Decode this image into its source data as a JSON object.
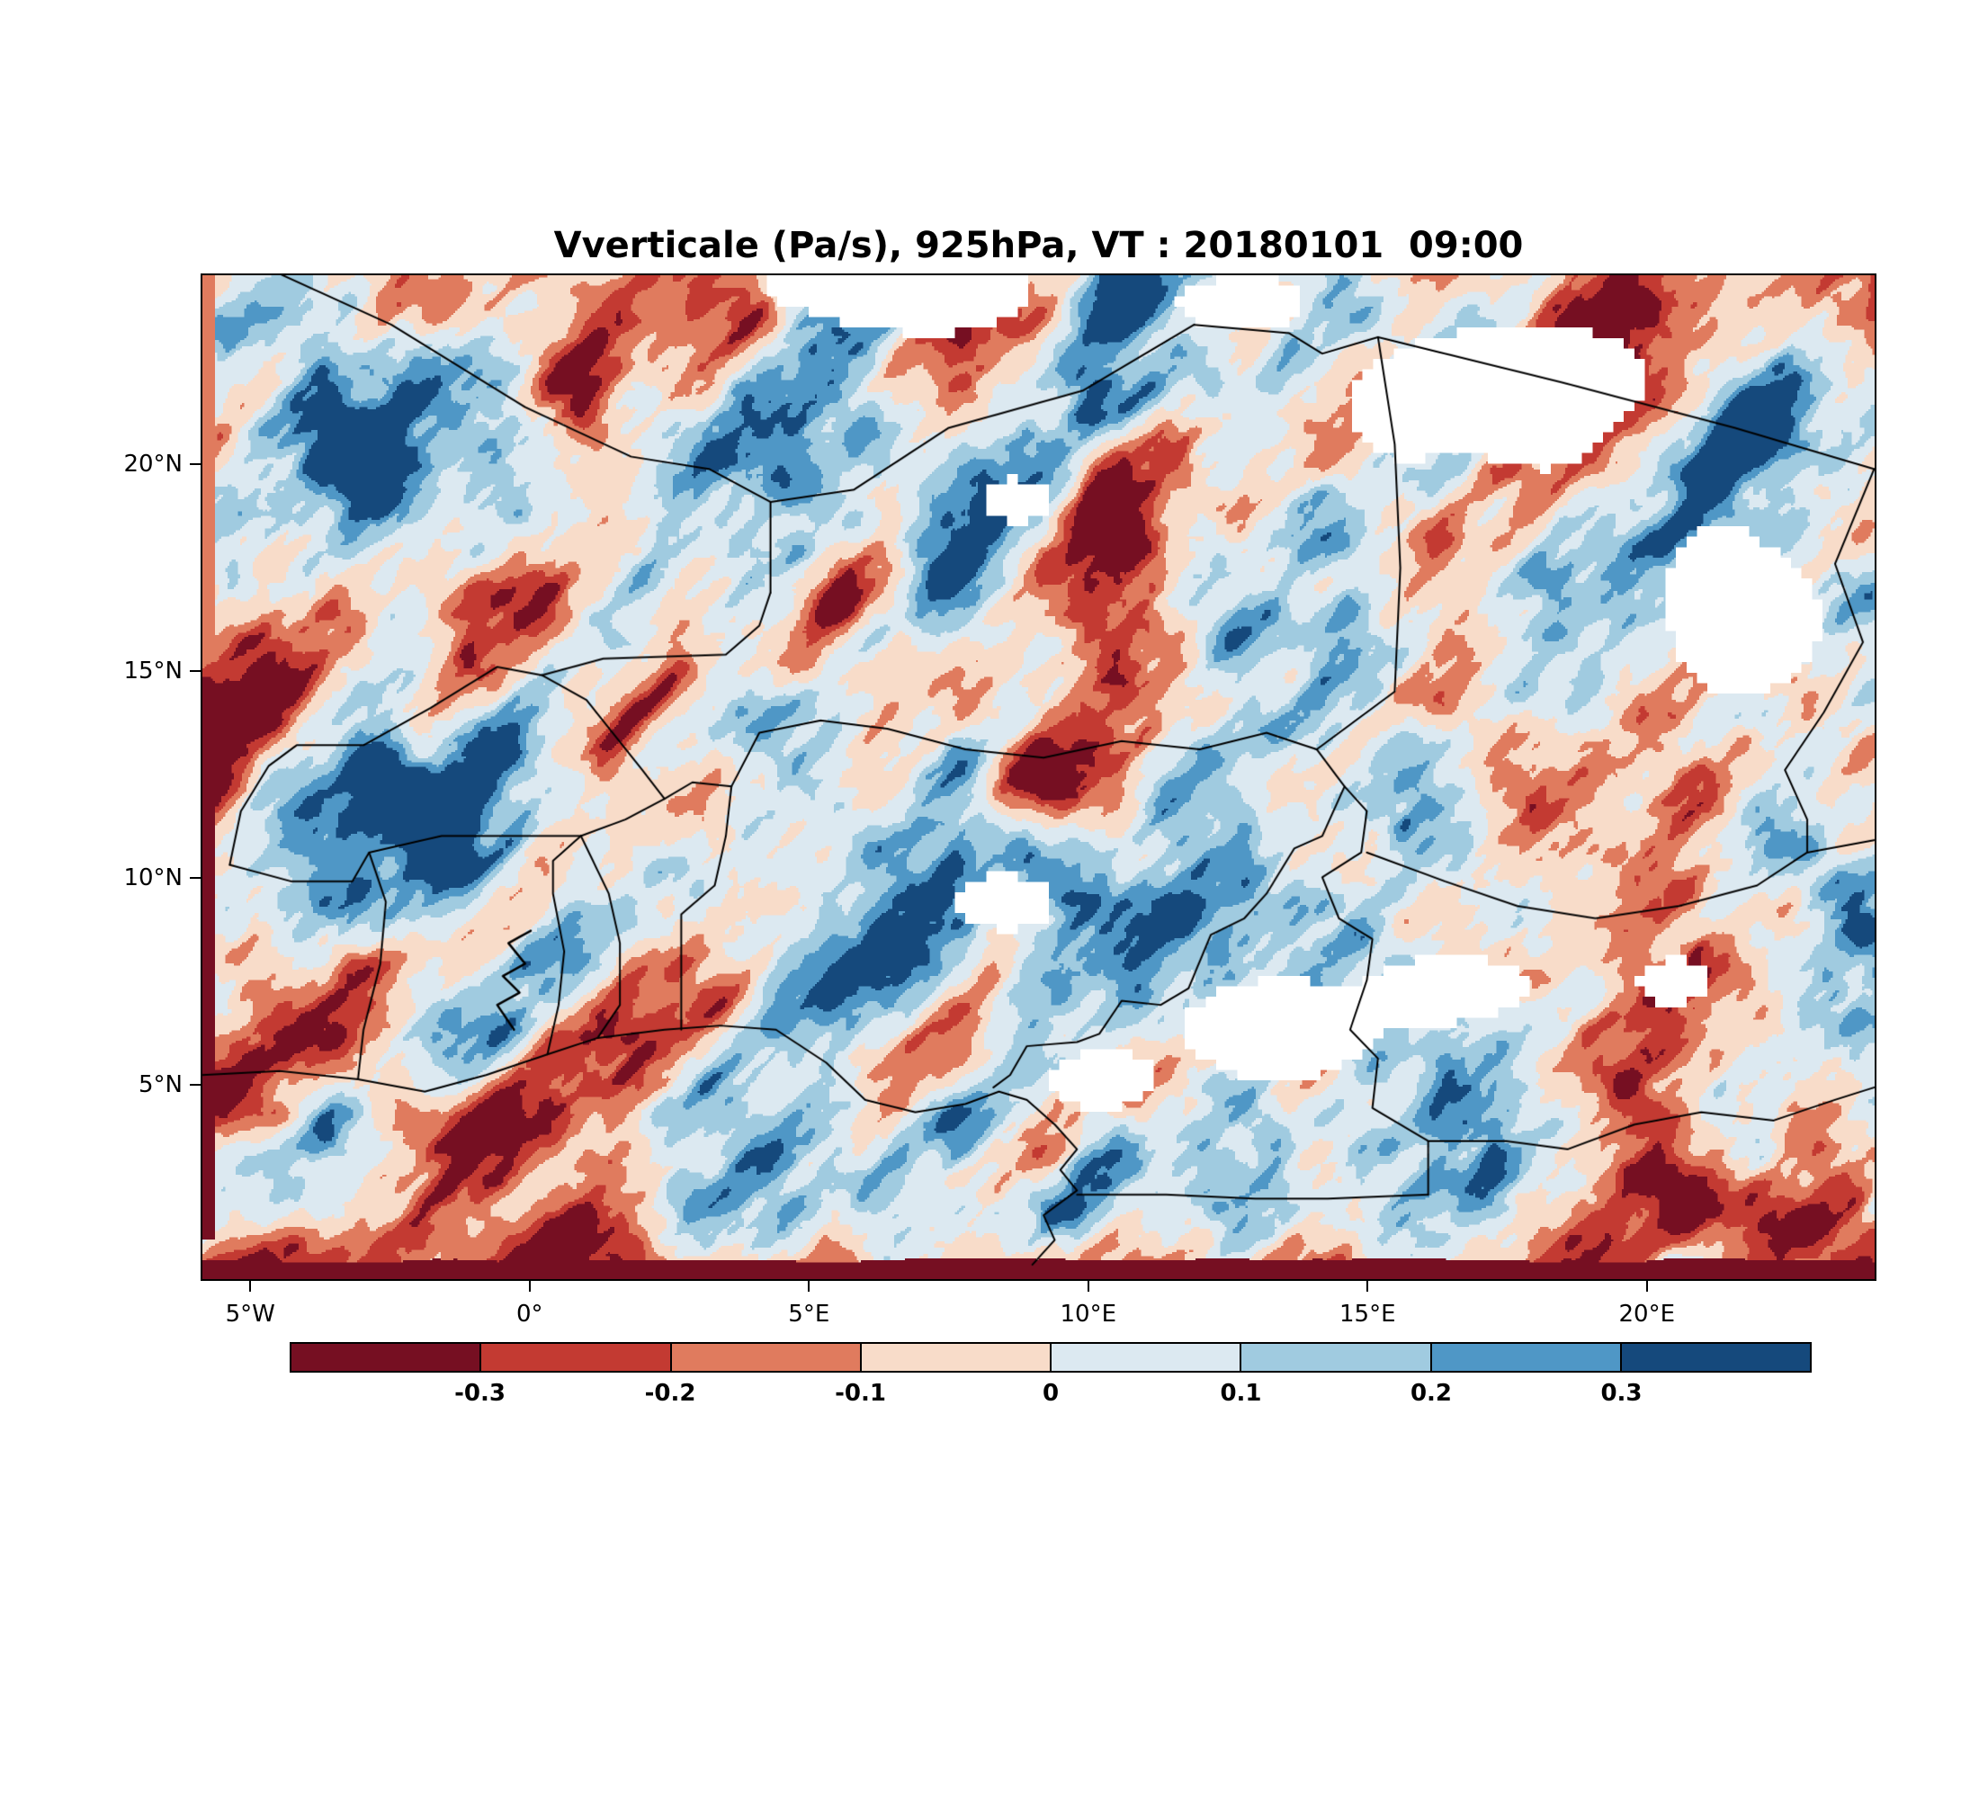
{
  "title": "Vverticale (Pa/s), 925hPa, VT : 20180101  09:00",
  "chart_data": {
    "type": "heatmap",
    "title": "Vverticale (Pa/s), 925hPa, VT : 20180101  09:00",
    "variable": "Vverticale",
    "units": "Pa/s",
    "pressure_level": "925hPa",
    "valid_time_label": "VT : 20180101  09:00",
    "projection": "lat-lon map of West and Central Africa",
    "extent": {
      "lon_min": -5.89,
      "lon_max": 24.11,
      "lat_min": 0.25,
      "lat_max": 24.6
    },
    "x_ticks": {
      "labels": [
        "5°W",
        "0°",
        "5°E",
        "10°E",
        "15°E",
        "20°E"
      ],
      "lons": [
        -5,
        0,
        5,
        10,
        15,
        20
      ]
    },
    "y_ticks": {
      "labels": [
        "5°N",
        "10°N",
        "15°N",
        "20°N"
      ],
      "lats": [
        5,
        10,
        15,
        20
      ]
    },
    "colorbar": {
      "orientation": "horizontal",
      "boundaries": [
        -0.3,
        -0.2,
        -0.1,
        0,
        0.1,
        0.2,
        0.3
      ],
      "tick_labels": [
        "-0.3",
        "-0.2",
        "-0.1",
        "0",
        "0.1",
        "0.2",
        "0.3"
      ],
      "colors": [
        "#760f22",
        "#c33a32",
        "#e07b5e",
        "#f8dcc9",
        "#dce9f1",
        "#a0cbe0",
        "#4f97c6",
        "#15497c"
      ],
      "missing_color": "#ffffff"
    },
    "field_character": "Turbulent alternating updraft/downdraft cells with NE-SW elongated streaks; deep red band along the southern edge, dark red strip on the western edge, white patches of masked data.",
    "render": {
      "seed": 11,
      "white_threshold": 0.48,
      "dark_band_lat": 0.55,
      "left_strip_lon": -5.68,
      "white_blobs": [
        [
          7.0,
          24.4,
          2.8,
          1.5
        ],
        [
          12.6,
          23.9,
          1.1,
          0.7
        ],
        [
          17.0,
          21.8,
          2.8,
          1.9
        ],
        [
          21.5,
          16.5,
          1.4,
          2.2
        ],
        [
          8.7,
          19.2,
          0.8,
          0.7
        ],
        [
          8.6,
          9.4,
          0.9,
          0.7
        ],
        [
          13.5,
          6.2,
          2.0,
          1.1
        ],
        [
          16.5,
          7.3,
          1.3,
          0.8
        ],
        [
          20.6,
          7.5,
          0.9,
          0.7
        ],
        [
          10.2,
          5.0,
          1.0,
          0.8
        ]
      ],
      "bias_blobs": [
        [
          5.0,
          19.0,
          3.2,
          2.6,
          0.1
        ],
        [
          8.0,
          8.5,
          2.5,
          2.0,
          0.08
        ],
        [
          17.0,
          18.0,
          3.0,
          2.2,
          0.07
        ],
        [
          -2.0,
          12.0,
          3.0,
          2.5,
          -0.05
        ],
        [
          11.0,
          16.0,
          4.0,
          2.5,
          -0.04
        ]
      ],
      "red_wedges": [
        [
          23.2,
          3.0,
          1.6,
          1.4,
          -0.35
        ],
        [
          21.5,
          1.8,
          2.0,
          1.0,
          -0.3
        ]
      ]
    }
  },
  "map_overlay": {
    "stroke_color": "#000000",
    "borders": [
      [
        [
          -5.9,
          5.2
        ],
        [
          -4.5,
          5.3
        ],
        [
          -3.1,
          5.1
        ],
        [
          -1.9,
          4.8
        ],
        [
          -0.8,
          5.2
        ],
        [
          0.3,
          5.7
        ],
        [
          1.2,
          6.1
        ],
        [
          2.4,
          6.3
        ],
        [
          3.4,
          6.4
        ],
        [
          4.4,
          6.3
        ],
        [
          5.3,
          5.5
        ],
        [
          6.0,
          4.6
        ],
        [
          6.9,
          4.3
        ],
        [
          7.8,
          4.5
        ],
        [
          8.4,
          4.8
        ],
        [
          8.9,
          4.6
        ],
        [
          9.4,
          4.0
        ],
        [
          9.8,
          3.4
        ],
        [
          9.5,
          2.9
        ],
        [
          9.8,
          2.4
        ],
        [
          9.2,
          1.8
        ],
        [
          9.4,
          1.2
        ],
        [
          9.0,
          0.6
        ]
      ],
      [
        [
          -3.1,
          5.1
        ],
        [
          -3.0,
          6.3
        ],
        [
          -2.7,
          7.9
        ],
        [
          -2.6,
          9.4
        ],
        [
          -2.9,
          10.6
        ]
      ],
      [
        [
          0.3,
          5.7
        ],
        [
          0.5,
          6.9
        ],
        [
          0.6,
          8.2
        ],
        [
          0.4,
          9.6
        ],
        [
          0.4,
          10.4
        ],
        [
          0.9,
          11.0
        ]
      ],
      [
        [
          1.2,
          6.1
        ],
        [
          1.6,
          6.9
        ],
        [
          1.6,
          8.4
        ],
        [
          1.4,
          9.6
        ],
        [
          0.9,
          11.0
        ]
      ],
      [
        [
          2.7,
          6.3
        ],
        [
          2.7,
          7.8
        ],
        [
          2.7,
          9.1
        ],
        [
          3.3,
          9.8
        ],
        [
          3.5,
          11.0
        ],
        [
          3.6,
          12.2
        ]
      ],
      [
        [
          -5.4,
          10.3
        ],
        [
          -4.3,
          9.9
        ],
        [
          -3.2,
          9.9
        ],
        [
          -2.9,
          10.6
        ],
        [
          -1.6,
          11.0
        ],
        [
          -0.3,
          11.0
        ],
        [
          0.9,
          11.0
        ]
      ],
      [
        [
          -5.4,
          10.3
        ],
        [
          -5.2,
          11.6
        ],
        [
          -4.7,
          12.7
        ],
        [
          -4.2,
          13.2
        ],
        [
          -3.0,
          13.2
        ],
        [
          -1.8,
          14.1
        ],
        [
          -0.6,
          15.1
        ],
        [
          0.2,
          14.9
        ],
        [
          1.0,
          14.3
        ],
        [
          2.0,
          12.6
        ],
        [
          2.4,
          11.9
        ],
        [
          1.7,
          11.4
        ],
        [
          0.9,
          11.0
        ]
      ],
      [
        [
          2.4,
          11.9
        ],
        [
          2.9,
          12.3
        ],
        [
          3.6,
          12.2
        ],
        [
          4.1,
          13.5
        ],
        [
          5.2,
          13.8
        ],
        [
          6.4,
          13.6
        ],
        [
          7.8,
          13.1
        ],
        [
          9.2,
          12.9
        ],
        [
          10.6,
          13.3
        ],
        [
          12.0,
          13.1
        ],
        [
          13.2,
          13.5
        ],
        [
          14.1,
          13.1
        ]
      ],
      [
        [
          0.2,
          14.9
        ],
        [
          1.3,
          15.3
        ],
        [
          3.5,
          15.4
        ],
        [
          4.1,
          16.1
        ],
        [
          4.3,
          16.9
        ]
      ],
      [
        [
          -5.1,
          25.0
        ],
        [
          -2.5,
          23.4
        ],
        [
          -0.1,
          21.4
        ],
        [
          1.8,
          20.2
        ],
        [
          3.2,
          19.9
        ],
        [
          4.3,
          19.1
        ],
        [
          4.3,
          16.9
        ]
      ],
      [
        [
          4.3,
          19.1
        ],
        [
          5.8,
          19.4
        ],
        [
          7.5,
          20.9
        ],
        [
          9.9,
          21.8
        ],
        [
          11.9,
          23.4
        ]
      ],
      [
        [
          11.9,
          23.4
        ],
        [
          13.6,
          23.2
        ],
        [
          14.2,
          22.7
        ],
        [
          15.2,
          23.1
        ],
        [
          18.5,
          22.0
        ],
        [
          21.6,
          20.9
        ],
        [
          24.1,
          19.9
        ]
      ],
      [
        [
          15.2,
          23.1
        ],
        [
          15.5,
          20.5
        ],
        [
          15.6,
          17.5
        ],
        [
          15.5,
          14.5
        ],
        [
          14.1,
          13.1
        ]
      ],
      [
        [
          14.1,
          13.1
        ],
        [
          14.6,
          12.2
        ],
        [
          14.2,
          11.0
        ],
        [
          13.7,
          10.7
        ],
        [
          13.2,
          9.6
        ],
        [
          12.8,
          9.0
        ],
        [
          12.2,
          8.6
        ],
        [
          11.8,
          7.3
        ],
        [
          11.3,
          6.9
        ],
        [
          10.6,
          7.0
        ],
        [
          10.2,
          6.2
        ],
        [
          9.8,
          6.0
        ],
        [
          8.9,
          5.9
        ],
        [
          8.6,
          5.2
        ],
        [
          8.3,
          4.9
        ]
      ],
      [
        [
          14.6,
          12.2
        ],
        [
          15.0,
          11.6
        ],
        [
          14.9,
          10.6
        ],
        [
          14.2,
          10.0
        ],
        [
          14.5,
          9.0
        ],
        [
          15.1,
          8.5
        ],
        [
          15.0,
          7.5
        ],
        [
          14.7,
          6.3
        ],
        [
          15.2,
          5.6
        ],
        [
          15.1,
          4.4
        ],
        [
          16.1,
          3.6
        ],
        [
          16.1,
          2.3
        ]
      ],
      [
        [
          15.0,
          10.6
        ],
        [
          16.4,
          9.9
        ],
        [
          17.7,
          9.3
        ],
        [
          19.1,
          9.0
        ],
        [
          20.6,
          9.3
        ],
        [
          22.0,
          9.8
        ],
        [
          22.9,
          10.6
        ],
        [
          24.1,
          10.9
        ]
      ],
      [
        [
          24.1,
          19.9
        ],
        [
          23.4,
          17.6
        ],
        [
          23.9,
          15.7
        ],
        [
          23.2,
          14.0
        ],
        [
          22.5,
          12.6
        ],
        [
          22.9,
          11.4
        ],
        [
          22.9,
          10.6
        ]
      ],
      [
        [
          9.8,
          2.3
        ],
        [
          11.4,
          2.3
        ],
        [
          13.0,
          2.2
        ],
        [
          14.3,
          2.2
        ],
        [
          16.1,
          2.3
        ]
      ],
      [
        [
          16.1,
          3.6
        ],
        [
          17.5,
          3.6
        ],
        [
          18.6,
          3.4
        ],
        [
          19.8,
          4.0
        ],
        [
          21.0,
          4.3
        ],
        [
          22.3,
          4.1
        ],
        [
          23.4,
          4.6
        ],
        [
          24.1,
          4.9
        ]
      ]
    ],
    "lakes": [
      [
        [
          -0.3,
          6.3
        ],
        [
          -0.6,
          6.9
        ],
        [
          -0.2,
          7.2
        ],
        [
          -0.5,
          7.6
        ],
        [
          -0.1,
          7.9
        ],
        [
          -0.4,
          8.4
        ],
        [
          0.0,
          8.7
        ]
      ]
    ]
  }
}
